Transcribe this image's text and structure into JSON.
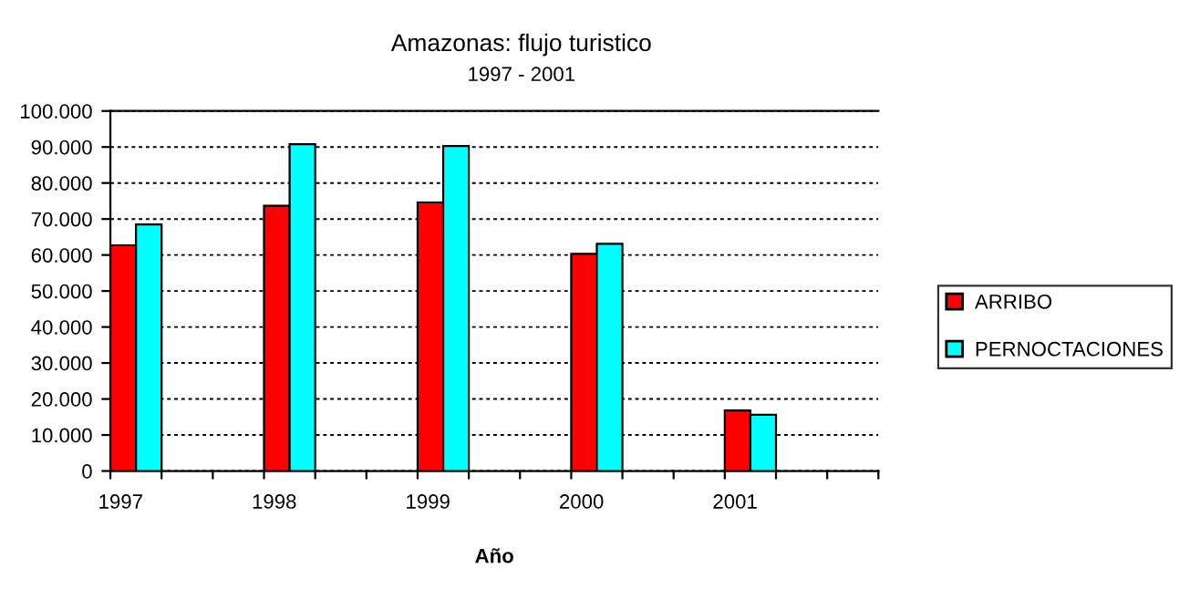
{
  "chart_data": {
    "type": "bar",
    "title": "Amazonas: flujo turistico",
    "subtitle": "1997 - 2001",
    "xlabel": "Año",
    "categories": [
      "1997",
      "1998",
      "1999",
      "2000",
      "2001"
    ],
    "series": [
      {
        "name": "ARRIBO",
        "color": "#ff0000",
        "values": [
          62700,
          73700,
          74600,
          60300,
          16800
        ]
      },
      {
        "name": "PERNOCTACIONES",
        "color": "#00ffff",
        "values": [
          68500,
          90800,
          90300,
          63100,
          15600
        ]
      }
    ],
    "ylim": [
      0,
      100000
    ],
    "yticks": [
      {
        "value": 0,
        "label": "0"
      },
      {
        "value": 10000,
        "label": "10.000"
      },
      {
        "value": 20000,
        "label": "20.000"
      },
      {
        "value": 30000,
        "label": "30.000"
      },
      {
        "value": 40000,
        "label": "40.000"
      },
      {
        "value": 50000,
        "label": "50.000"
      },
      {
        "value": 60000,
        "label": "60.000"
      },
      {
        "value": 70000,
        "label": "70.000"
      },
      {
        "value": 80000,
        "label": "80.000"
      },
      {
        "value": 90000,
        "label": "90.000"
      },
      {
        "value": 100000,
        "label": "100.000"
      }
    ],
    "grid": "y",
    "legend": "right"
  }
}
